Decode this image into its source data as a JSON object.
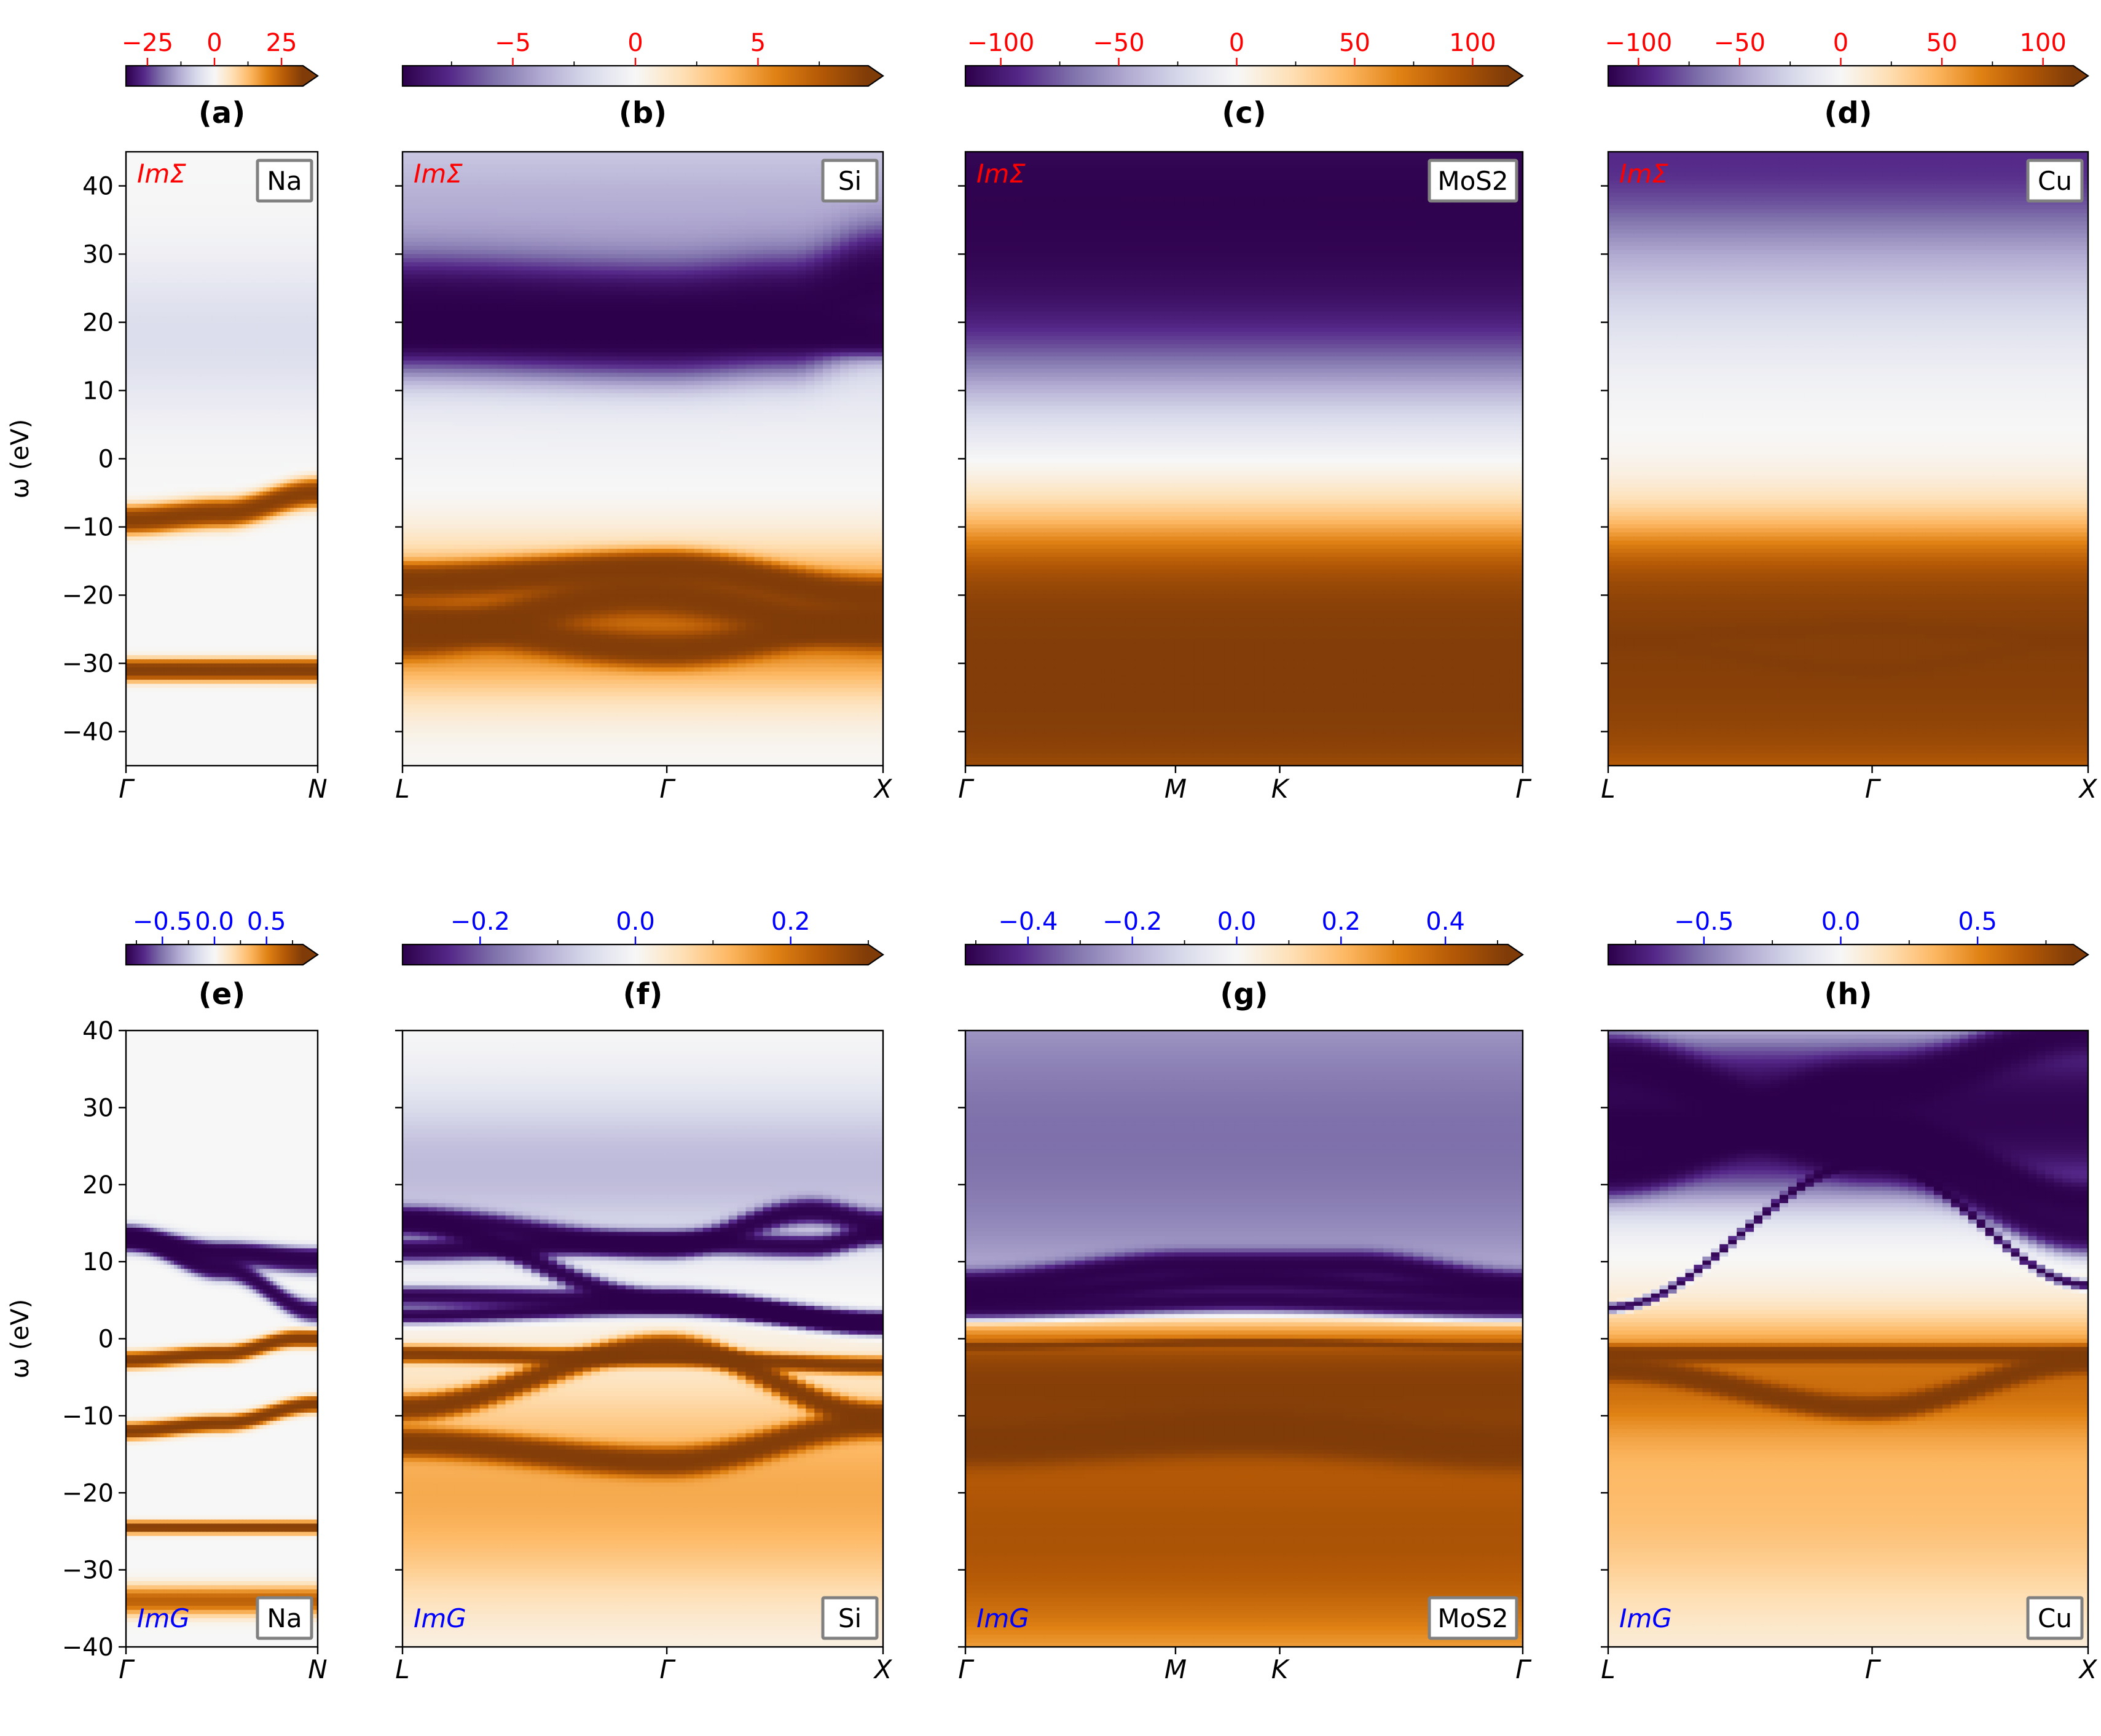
{
  "figure": {
    "ylabel": "ω (eV)",
    "colormap": [
      "#2d004b",
      "#542788",
      "#8073ac",
      "#b2abd2",
      "#d8daeb",
      "#f7f7f7",
      "#fee0b6",
      "#fdb863",
      "#e08214",
      "#b35806",
      "#7f3b08"
    ],
    "sigma_label_color": "#ff0000",
    "g_label_color": "#0000ff"
  },
  "chart_data": [
    {
      "type": "heatmap",
      "panel": "(a)",
      "material": "Na",
      "quantity": "ImΣ",
      "kpoints": [
        "Γ",
        "N"
      ],
      "k_positions": [
        0,
        1
      ],
      "ylim": [
        -45,
        45
      ],
      "yticks": [
        -40,
        -30,
        -20,
        -10,
        0,
        10,
        20,
        30,
        40
      ],
      "colorbar": {
        "range": [
          -33,
          33
        ],
        "ticks": [
          -25,
          0,
          25
        ],
        "tick_labels": [
          "−25",
          "0",
          "25"
        ],
        "extend": "max",
        "tick_color": "#ff0000"
      },
      "features": [
        {
          "kind": "line",
          "sign": 1,
          "k": [
            0,
            0.5,
            1
          ],
          "w": [
            -9,
            -8,
            -5
          ],
          "width": 1.2,
          "strength": 0.9
        },
        {
          "kind": "line",
          "sign": 1,
          "k": [
            0,
            1
          ],
          "w": [
            -31,
            -31
          ],
          "width": 0.9,
          "strength": 1.0
        },
        {
          "kind": "band",
          "sign": -1,
          "w": 18,
          "width": 8,
          "strength": 0.08
        }
      ]
    },
    {
      "type": "heatmap",
      "panel": "(b)",
      "material": "Si",
      "quantity": "ImΣ",
      "kpoints": [
        "L",
        "Γ",
        "X"
      ],
      "k_positions": [
        0,
        0.55,
        1
      ],
      "ylim": [
        -45,
        45
      ],
      "yticks": [
        -40,
        -30,
        -20,
        -10,
        0,
        10,
        20,
        30,
        40
      ],
      "colorbar": {
        "range": [
          -9.5,
          9.5
        ],
        "ticks": [
          -5,
          0,
          5
        ],
        "tick_labels": [
          "−5",
          "0",
          "5"
        ],
        "extend": "max",
        "tick_color": "#ff0000"
      },
      "features": [
        {
          "kind": "band",
          "sign": -1,
          "w": 32,
          "width": 14,
          "strength": 0.2
        },
        {
          "kind": "line",
          "sign": -1,
          "k": [
            0,
            0.55,
            0.8,
            1
          ],
          "w": [
            21,
            20,
            21,
            25
          ],
          "width": 4.5,
          "strength": 1.1
        },
        {
          "kind": "line",
          "sign": -1,
          "k": [
            0.8,
            1
          ],
          "w": [
            19,
            18
          ],
          "width": 1.6,
          "strength": 1.0
        },
        {
          "kind": "line",
          "sign": 1,
          "k": [
            0,
            0.55,
            1
          ],
          "w": [
            -18,
            -16,
            -20
          ],
          "width": 1.4,
          "strength": 1.0
        },
        {
          "kind": "line",
          "sign": 1,
          "k": [
            0,
            0.55,
            1
          ],
          "w": [
            -24,
            -28,
            -24
          ],
          "width": 1.4,
          "strength": 0.85
        },
        {
          "kind": "line",
          "sign": 1,
          "k": [
            0,
            0.5,
            1
          ],
          "w": [
            -26,
            -20,
            -25
          ],
          "width": 1.6,
          "strength": 0.9
        },
        {
          "kind": "band",
          "sign": 1,
          "w": -24,
          "width": 7,
          "strength": 0.35
        }
      ]
    },
    {
      "type": "heatmap",
      "panel": "(c)",
      "material": "MoS2",
      "quantity": "ImΣ",
      "kpoints": [
        "Γ",
        "M",
        "K",
        "Γ"
      ],
      "k_positions": [
        0,
        0.377,
        0.564,
        1
      ],
      "ylim": [
        -45,
        45
      ],
      "yticks": [
        -40,
        -30,
        -20,
        -10,
        0,
        10,
        20,
        30,
        40
      ],
      "colorbar": {
        "range": [
          -115,
          115
        ],
        "ticks": [
          -100,
          -50,
          0,
          50,
          100
        ],
        "tick_labels": [
          "−100",
          "−50",
          "0",
          "50",
          "100"
        ],
        "extend": "max",
        "tick_color": "#ff0000"
      },
      "features": [
        {
          "kind": "band",
          "sign": -1,
          "w": 31,
          "width": 12,
          "strength": 0.8
        },
        {
          "kind": "band",
          "sign": -1,
          "w": 42,
          "width": 8,
          "strength": 0.5
        },
        {
          "kind": "band",
          "sign": 1,
          "w": -27,
          "width": 10,
          "strength": 0.95
        },
        {
          "kind": "band",
          "sign": 1,
          "w": -40,
          "width": 8,
          "strength": 0.55
        }
      ]
    },
    {
      "type": "heatmap",
      "panel": "(d)",
      "material": "Cu",
      "quantity": "ImΣ",
      "kpoints": [
        "L",
        "Γ",
        "X"
      ],
      "k_positions": [
        0,
        0.55,
        1
      ],
      "ylim": [
        -45,
        45
      ],
      "yticks": [
        -40,
        -30,
        -20,
        -10,
        0,
        10,
        20,
        30,
        40
      ],
      "colorbar": {
        "range": [
          -115,
          115
        ],
        "ticks": [
          -100,
          -50,
          0,
          50,
          100
        ],
        "tick_labels": [
          "−100",
          "−50",
          "0",
          "50",
          "100"
        ],
        "extend": "max",
        "tick_color": "#ff0000"
      },
      "features": [
        {
          "kind": "band",
          "sign": -1,
          "w": 45,
          "width": 8,
          "strength": 0.45
        },
        {
          "kind": "band",
          "sign": -1,
          "w": 30,
          "width": 10,
          "strength": 0.12
        },
        {
          "kind": "band",
          "sign": 1,
          "w": -25,
          "width": 9,
          "strength": 0.85
        },
        {
          "kind": "band",
          "sign": 1,
          "w": -40,
          "width": 8,
          "strength": 0.5
        },
        {
          "kind": "line",
          "sign": 1,
          "k": [
            0,
            0.55,
            1
          ],
          "w": [
            -26,
            -25,
            -26
          ],
          "width": 0.8,
          "strength": 0.25
        },
        {
          "kind": "line",
          "sign": 1,
          "k": [
            0,
            0.55,
            1
          ],
          "w": [
            -27,
            -31,
            -27
          ],
          "width": 0.8,
          "strength": 0.2
        }
      ]
    },
    {
      "type": "heatmap",
      "panel": "(e)",
      "material": "Na",
      "quantity": "ImG",
      "kpoints": [
        "Γ",
        "N"
      ],
      "k_positions": [
        0,
        1
      ],
      "ylim": [
        -40,
        40
      ],
      "yticks": [
        -40,
        -30,
        -20,
        -10,
        0,
        10,
        20,
        30,
        40
      ],
      "colorbar": {
        "range": [
          -0.85,
          0.85
        ],
        "ticks": [
          -0.5,
          0,
          0.5
        ],
        "tick_labels": [
          "−0.5",
          "0.0",
          "0.5"
        ],
        "extend": "max",
        "tick_color": "#0000ff"
      },
      "features": [
        {
          "kind": "line",
          "sign": -1,
          "k": [
            0,
            0.5,
            1
          ],
          "w": [
            13,
            11,
            10
          ],
          "width": 0.9,
          "strength": 1.0
        },
        {
          "kind": "line",
          "sign": -1,
          "k": [
            0,
            0.5,
            1
          ],
          "w": [
            13.5,
            11.5,
            11
          ],
          "width": 0.5,
          "strength": 0.35
        },
        {
          "kind": "line",
          "sign": -1,
          "k": [
            0,
            0.5,
            1
          ],
          "w": [
            13,
            9,
            3.5
          ],
          "width": 0.8,
          "strength": 1.0
        },
        {
          "kind": "line",
          "sign": 1,
          "k": [
            0,
            0.5,
            0.9
          ],
          "w": [
            -2.8,
            -2,
            0
          ],
          "width": 0.6,
          "strength": 1.0
        },
        {
          "kind": "line",
          "sign": 1,
          "k": [
            0,
            0.5,
            1
          ],
          "w": [
            -12,
            -11,
            -8.5
          ],
          "width": 0.6,
          "strength": 1.0
        },
        {
          "kind": "line",
          "sign": 1,
          "k": [
            0,
            1
          ],
          "w": [
            -24.5,
            -24.5
          ],
          "width": 0.45,
          "strength": 1.0
        },
        {
          "kind": "band",
          "sign": 1,
          "w": -34,
          "width": 1.2,
          "strength": 0.45
        }
      ]
    },
    {
      "type": "heatmap",
      "panel": "(f)",
      "material": "Si",
      "quantity": "ImG",
      "kpoints": [
        "L",
        "Γ",
        "X"
      ],
      "k_positions": [
        0,
        0.55,
        1
      ],
      "ylim": [
        -40,
        40
      ],
      "yticks": [
        -40,
        -30,
        -20,
        -10,
        0,
        10,
        20,
        30,
        40
      ],
      "colorbar": {
        "range": [
          -0.3,
          0.3
        ],
        "ticks": [
          -0.2,
          0,
          0.2
        ],
        "tick_labels": [
          "−0.2",
          "0.0",
          "0.2"
        ],
        "extend": "max",
        "tick_color": "#0000ff"
      },
      "features": [
        {
          "kind": "band",
          "sign": -1,
          "w": 22,
          "width": 7,
          "strength": 0.16
        },
        {
          "kind": "line",
          "sign": -1,
          "k": [
            0,
            0.55,
            0.85,
            1
          ],
          "w": [
            15.5,
            12,
            16.5,
            15
          ],
          "width": 0.9,
          "strength": 1.0
        },
        {
          "kind": "line",
          "sign": -1,
          "k": [
            0,
            0.55,
            0.85,
            1
          ],
          "w": [
            11.5,
            12.5,
            12,
            13.5
          ],
          "width": 0.8,
          "strength": 1.0
        },
        {
          "kind": "line",
          "sign": -1,
          "k": [
            0,
            0.55,
            1
          ],
          "w": [
            15,
            5,
            2
          ],
          "width": 0.8,
          "strength": 1.0
        },
        {
          "kind": "line",
          "sign": -1,
          "k": [
            0,
            0.55,
            1
          ],
          "w": [
            5.5,
            5,
            2
          ],
          "width": 0.7,
          "strength": 1.0
        },
        {
          "kind": "line",
          "sign": -1,
          "k": [
            0,
            0.55,
            1
          ],
          "w": [
            3,
            4,
            2
          ],
          "width": 0.6,
          "strength": 1.0
        },
        {
          "kind": "line",
          "sign": 1,
          "k": [
            0,
            0.55,
            1
          ],
          "w": [
            -2,
            -2.5,
            -3.5
          ],
          "width": 0.6,
          "strength": 1.0
        },
        {
          "kind": "line",
          "sign": 1,
          "k": [
            0,
            0.55,
            1
          ],
          "w": [
            -9,
            -1,
            -10
          ],
          "width": 0.9,
          "strength": 1.0
        },
        {
          "kind": "line",
          "sign": 1,
          "k": [
            0,
            0.55,
            1
          ],
          "w": [
            -13.5,
            -16,
            -11
          ],
          "width": 1.0,
          "strength": 1.0
        },
        {
          "kind": "band",
          "sign": 1,
          "w": -20,
          "width": 10,
          "strength": 0.22
        }
      ]
    },
    {
      "type": "heatmap",
      "panel": "(g)",
      "material": "MoS2",
      "quantity": "ImG",
      "kpoints": [
        "Γ",
        "M",
        "K",
        "Γ"
      ],
      "k_positions": [
        0,
        0.377,
        0.564,
        1
      ],
      "ylim": [
        -40,
        40
      ],
      "yticks": [
        -40,
        -30,
        -20,
        -10,
        0,
        10,
        20,
        30,
        40
      ],
      "colorbar": {
        "range": [
          -0.52,
          0.52
        ],
        "ticks": [
          -0.4,
          -0.2,
          0,
          0.2,
          0.4
        ],
        "tick_labels": [
          "−0.4",
          "−0.2",
          "0.0",
          "0.2",
          "0.4"
        ],
        "extend": "max",
        "tick_color": "#0000ff"
      },
      "features": [
        {
          "kind": "band",
          "sign": -1,
          "w": 26,
          "width": 18,
          "strength": 0.32
        },
        {
          "kind": "line",
          "sign": -1,
          "k": [
            0,
            0.4,
            0.7,
            1
          ],
          "w": [
            7,
            9.5,
            9.5,
            7
          ],
          "width": 1.0,
          "strength": 1.0
        },
        {
          "kind": "line",
          "sign": -1,
          "k": [
            0,
            0.5,
            1
          ],
          "w": [
            4,
            5,
            4
          ],
          "width": 0.9,
          "strength": 1.0
        },
        {
          "kind": "line",
          "sign": -1,
          "k": [
            0,
            0.5,
            1
          ],
          "w": [
            5.5,
            7.5,
            6
          ],
          "width": 0.7,
          "strength": 1.0
        },
        {
          "kind": "line",
          "sign": 1,
          "k": [
            0,
            0.5,
            1
          ],
          "w": [
            -1,
            -0.5,
            -1
          ],
          "width": 0.25,
          "strength": 0.9
        },
        {
          "kind": "band",
          "sign": 1,
          "w": -6,
          "width": 5,
          "strength": 0.85
        },
        {
          "kind": "line",
          "sign": 1,
          "k": [
            0,
            0.5,
            1
          ],
          "w": [
            -13.5,
            -12,
            -14
          ],
          "width": 1.6,
          "strength": 1.0
        },
        {
          "kind": "band",
          "sign": 1,
          "w": -25,
          "width": 12,
          "strength": 0.55
        }
      ]
    },
    {
      "type": "heatmap",
      "panel": "(h)",
      "material": "Cu",
      "quantity": "ImG",
      "kpoints": [
        "L",
        "Γ",
        "X"
      ],
      "k_positions": [
        0,
        0.55,
        1
      ],
      "ylim": [
        -40,
        40
      ],
      "yticks": [
        -40,
        -30,
        -20,
        -10,
        0,
        10,
        20,
        30,
        40
      ],
      "colorbar": {
        "range": [
          -0.85,
          0.85
        ],
        "ticks": [
          -0.5,
          0,
          0.5
        ],
        "tick_labels": [
          "−0.5",
          "0.0",
          "0.5"
        ],
        "extend": "max",
        "tick_color": "#0000ff"
      },
      "features": [
        {
          "kind": "band",
          "sign": -1,
          "w": 29,
          "width": 6,
          "strength": 1.0
        },
        {
          "kind": "line",
          "sign": -1,
          "k": [
            0,
            0.55,
            1
          ],
          "w": [
            36,
            24,
            14
          ],
          "width": 1.8,
          "strength": 1.0
        },
        {
          "kind": "line",
          "sign": -1,
          "k": [
            0,
            0.55,
            1
          ],
          "w": [
            22,
            33,
            40
          ],
          "width": 1.8,
          "strength": 1.0
        },
        {
          "kind": "line",
          "sign": -1,
          "k": [
            0.55,
            1
          ],
          "w": [
            27,
            18
          ],
          "width": 1.4,
          "strength": 1.0
        },
        {
          "kind": "line",
          "sign": -1,
          "k": [
            0,
            0.55,
            1
          ],
          "w": [
            4,
            23,
            7
          ],
          "width": 0.35,
          "strength": 1.0
        },
        {
          "kind": "line",
          "sign": 1,
          "k": [
            0,
            0.55,
            1
          ],
          "w": [
            -2,
            -2,
            -2
          ],
          "width": 0.6,
          "strength": 1.0
        },
        {
          "kind": "line",
          "sign": 1,
          "k": [
            0,
            0.55,
            1
          ],
          "w": [
            -4,
            -9,
            -3
          ],
          "width": 0.8,
          "strength": 1.0
        },
        {
          "kind": "band",
          "sign": 1,
          "w": -5,
          "width": 5,
          "strength": 0.3
        },
        {
          "kind": "band",
          "sign": 1,
          "w": -20,
          "width": 12,
          "strength": 0.18
        }
      ]
    }
  ]
}
